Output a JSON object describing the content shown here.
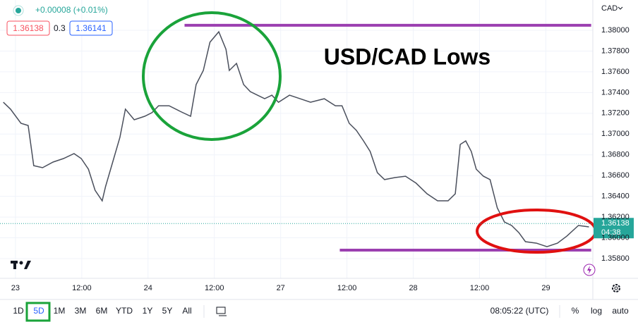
{
  "header": {
    "change": "+0.00008 (+0.01%)",
    "bid": "1.36138",
    "spread": "0.3",
    "ask": "1.36141",
    "currency": "CAD"
  },
  "chart_data": {
    "type": "line",
    "title": "USD/CAD Lows",
    "x": [
      -2.2,
      -0.9,
      1.0,
      2.3,
      3.3,
      4.9,
      6.8,
      8.7,
      10.6,
      11.9,
      13.2,
      14.4,
      15.7,
      16.3,
      17.6,
      18.9,
      19.9,
      21.5,
      23.4,
      24.7,
      25.9,
      27.8,
      29.8,
      31.7,
      32.7,
      34.0,
      35.2,
      36.8,
      38.1,
      38.7,
      40.0,
      41.3,
      42.5,
      43.8,
      45.1,
      46.4,
      47.6,
      49.6,
      51.5,
      53.4,
      55.9,
      57.9,
      59.1,
      60.4,
      61.7,
      63.0,
      64.2,
      65.5,
      66.8,
      68.7,
      70.6,
      72.5,
      74.5,
      76.4,
      78.3,
      79.6,
      80.5,
      81.5,
      82.5,
      83.4,
      84.7,
      85.9,
      87.2,
      88.5,
      89.8,
      91.1,
      92.3,
      94.3,
      96.2,
      98.1,
      99.8,
      101.9,
      103.8
    ],
    "series": [
      {
        "color": "#4a4f5c",
        "values": [
          1.37307,
          1.3724,
          1.37104,
          1.37083,
          1.36696,
          1.36676,
          1.3673,
          1.36764,
          1.36812,
          1.36764,
          1.36662,
          1.36459,
          1.36357,
          1.36493,
          1.3673,
          1.36968,
          1.3724,
          1.37138,
          1.37172,
          1.37206,
          1.37273,
          1.37273,
          1.37219,
          1.37172,
          1.37477,
          1.37613,
          1.37885,
          1.37986,
          1.37817,
          1.37613,
          1.37681,
          1.37477,
          1.37409,
          1.37375,
          1.37341,
          1.37375,
          1.37307,
          1.37375,
          1.37341,
          1.37307,
          1.37341,
          1.37273,
          1.37273,
          1.37104,
          1.37036,
          1.36934,
          1.36832,
          1.36628,
          1.36561,
          1.36581,
          1.36594,
          1.36527,
          1.36425,
          1.36357,
          1.36357,
          1.36425,
          1.369,
          1.36934,
          1.36832,
          1.36662,
          1.36594,
          1.36561,
          1.36289,
          1.36153,
          1.36119,
          1.36051,
          1.35963,
          1.35949,
          1.35915,
          1.35949,
          1.36017,
          1.36119,
          1.36106
        ]
      }
    ],
    "xlim": [
      -2.8,
      104.5
    ],
    "xticks": [
      {
        "value": 0,
        "label": "23"
      },
      {
        "value": 12,
        "label": "12:00"
      },
      {
        "value": 24,
        "label": "24"
      },
      {
        "value": 36,
        "label": "12:00"
      },
      {
        "value": 48,
        "label": "27"
      },
      {
        "value": 60,
        "label": "12:00"
      },
      {
        "value": 72,
        "label": "28"
      },
      {
        "value": 84,
        "label": "12:00"
      },
      {
        "value": 96,
        "label": "29"
      }
    ],
    "ylim": [
      1.3561,
      1.38292
    ],
    "yticks": [
      {
        "value": 1.358,
        "label": "1.35800"
      },
      {
        "value": 1.36,
        "label": "1.36000"
      },
      {
        "value": 1.362,
        "label": "1.36200"
      },
      {
        "value": 1.364,
        "label": "1.36400"
      },
      {
        "value": 1.366,
        "label": "1.36600"
      },
      {
        "value": 1.368,
        "label": "1.36800"
      },
      {
        "value": 1.37,
        "label": "1.37000"
      },
      {
        "value": 1.372,
        "label": "1.37200"
      },
      {
        "value": 1.374,
        "label": "1.37400"
      },
      {
        "value": 1.376,
        "label": "1.37600"
      },
      {
        "value": 1.378,
        "label": "1.37800"
      },
      {
        "value": 1.38,
        "label": "1.38000"
      }
    ],
    "grid": true,
    "levels": [
      {
        "value": 1.38048,
        "x": [
          30.6,
          104.2
        ],
        "color": "#9b3fb0"
      },
      {
        "value": 1.35882,
        "x": [
          58.7,
          104.2
        ],
        "color": "#9b3fb0"
      }
    ],
    "last_price": 1.36138,
    "countdown": "04:38",
    "last_price_color": "#26a69a"
  },
  "toolbar": {
    "ranges": [
      "1D",
      "5D",
      "1M",
      "3M",
      "6M",
      "YTD",
      "1Y",
      "5Y",
      "All"
    ],
    "time": "08:05:22 (UTC)",
    "percent": "%",
    "log": "log",
    "auto": "auto"
  }
}
